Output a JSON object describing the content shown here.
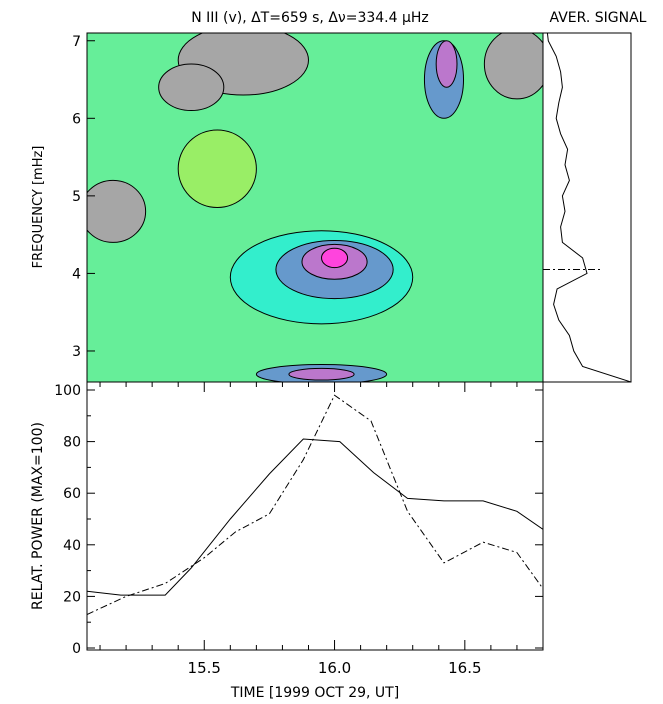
{
  "chart_data": [
    {
      "type": "heatmap",
      "title": "N III (v), ΔT=659 s, Δν=334.4 μHz",
      "ylabel": "FREQUENCY [mHz]",
      "xlim": [
        15.05,
        16.8
      ],
      "ylim": [
        2.6,
        7.1
      ],
      "yticks": [
        3,
        4,
        5,
        6,
        7
      ],
      "colors": {
        "gray": "#a6a6a6",
        "yellow": "#ffff66",
        "lightgreen": "#99ee66",
        "green": "#66ee99",
        "teal": "#33eecc",
        "cyan": "#33ccbb",
        "blue": "#6699cc",
        "purple": "#bb77cc",
        "magenta": "#ff44dd"
      },
      "features": [
        {
          "level": "gray",
          "t": 15.65,
          "f": 6.75,
          "w": 0.5,
          "h": 0.9
        },
        {
          "level": "gray",
          "t": 15.15,
          "f": 4.8,
          "w": 0.25,
          "h": 0.8
        },
        {
          "level": "gray",
          "t": 15.45,
          "f": 6.4,
          "w": 0.25,
          "h": 0.6
        },
        {
          "level": "gray",
          "t": 16.7,
          "f": 6.7,
          "w": 0.25,
          "h": 0.9
        },
        {
          "level": "lightgreen",
          "t": 15.55,
          "f": 5.35,
          "w": 0.3,
          "h": 1.0
        },
        {
          "level": "teal",
          "t": 15.95,
          "f": 3.95,
          "w": 0.7,
          "h": 1.2
        },
        {
          "level": "blue",
          "t": 16.0,
          "f": 4.05,
          "w": 0.45,
          "h": 0.75
        },
        {
          "level": "purple",
          "t": 16.0,
          "f": 4.15,
          "w": 0.25,
          "h": 0.45
        },
        {
          "level": "magenta",
          "t": 16.0,
          "f": 4.2,
          "w": 0.1,
          "h": 0.25
        },
        {
          "level": "blue",
          "t": 16.42,
          "f": 6.5,
          "w": 0.15,
          "h": 1.0
        },
        {
          "level": "purple",
          "t": 16.43,
          "f": 6.7,
          "w": 0.08,
          "h": 0.6
        },
        {
          "level": "blue",
          "t": 15.95,
          "f": 2.7,
          "w": 0.5,
          "h": 0.25
        },
        {
          "level": "purple",
          "t": 15.95,
          "f": 2.7,
          "w": 0.25,
          "h": 0.15
        }
      ],
      "side_panel": {
        "title": "AVER. SIGNAL",
        "peak_frequency": 4.05,
        "profile_f": [
          2.6,
          2.8,
          3.0,
          3.2,
          3.4,
          3.6,
          3.8,
          4.0,
          4.2,
          4.4,
          4.6,
          4.8,
          5.0,
          5.2,
          5.4,
          5.6,
          5.8,
          6.0,
          6.2,
          6.4,
          6.6,
          6.8,
          7.0,
          7.1
        ],
        "profile_v": [
          1.0,
          0.45,
          0.35,
          0.3,
          0.18,
          0.12,
          0.16,
          0.5,
          0.45,
          0.22,
          0.2,
          0.25,
          0.22,
          0.3,
          0.25,
          0.28,
          0.2,
          0.15,
          0.18,
          0.22,
          0.2,
          0.15,
          0.06,
          0.05
        ]
      }
    },
    {
      "type": "line",
      "xlabel": "TIME [1999 OCT 29, UT]",
      "ylabel": "RELAT. POWER (MAX=100)",
      "xlim": [
        15.05,
        16.8
      ],
      "ylim": [
        0,
        100
      ],
      "xticks": [
        15.5,
        16.0,
        16.5
      ],
      "yticks": [
        0,
        20,
        40,
        60,
        80,
        100
      ],
      "series": [
        {
          "style": "solid",
          "x": [
            15.05,
            15.18,
            15.35,
            15.45,
            15.6,
            15.75,
            15.88,
            16.02,
            16.15,
            16.28,
            16.42,
            16.57,
            16.7,
            16.8
          ],
          "y": [
            22,
            20.5,
            20.5,
            31,
            50,
            67.5,
            81,
            80,
            68,
            58,
            57,
            57,
            53,
            46
          ]
        },
        {
          "style": "dashdot",
          "x": [
            15.05,
            15.2,
            15.35,
            15.5,
            15.62,
            15.75,
            15.88,
            16.0,
            16.14,
            16.28,
            16.42,
            16.57,
            16.7,
            16.8
          ],
          "y": [
            13,
            20,
            25,
            35,
            45,
            52,
            73,
            98,
            88,
            53,
            33,
            41,
            37,
            23
          ]
        }
      ]
    }
  ]
}
